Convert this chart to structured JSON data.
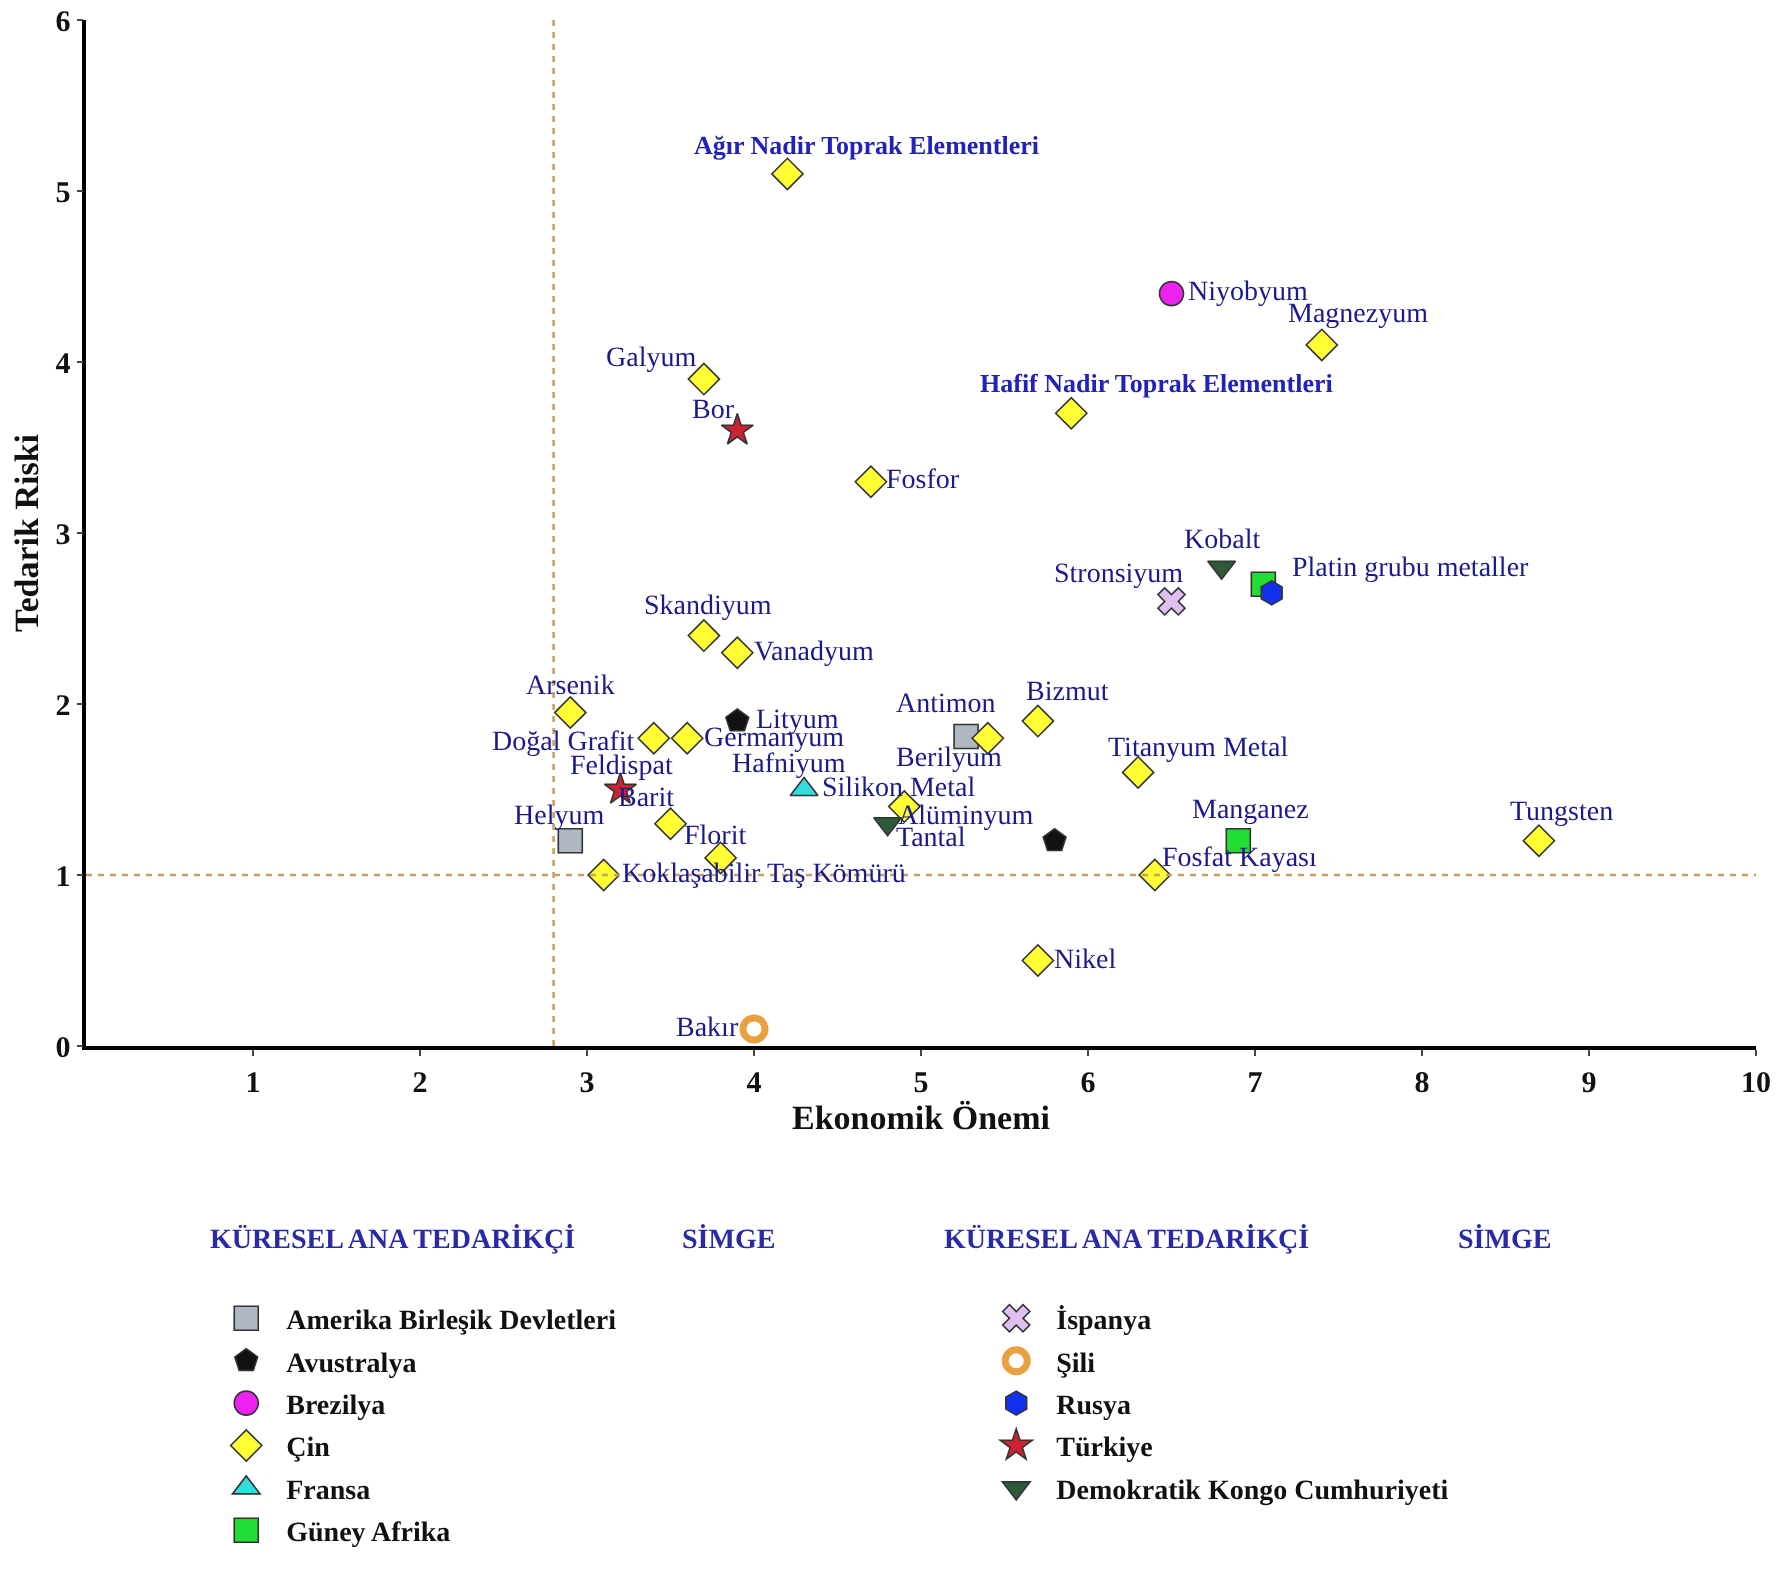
{
  "chart_data": {
    "type": "scatter",
    "xlabel": "Ekonomik Önemi",
    "ylabel": "Tedarik Riski",
    "xlim": [
      0,
      10
    ],
    "xticks": [
      1,
      2,
      3,
      4,
      5,
      6,
      7,
      8,
      9,
      10
    ],
    "ylim": [
      0,
      6
    ],
    "yticks": [
      0,
      1,
      2,
      3,
      4,
      5,
      6
    ],
    "grid": false,
    "legend": "bottom",
    "ref_lines": [
      {
        "axis": "x",
        "value": 2.8,
        "color": "#c8a060",
        "line_style": "dotted"
      },
      {
        "axis": "y",
        "value": 1,
        "color": "#c8a060",
        "line_style": "dotted"
      }
    ],
    "series": [
      {
        "name": "Amerika Birleşik Devletleri",
        "color": "#b0b8c4",
        "marker": "square",
        "x": [
          5.27,
          2.9
        ],
        "values": [
          1.81,
          1.2
        ]
      },
      {
        "name": "Avustralya",
        "color": "#111111",
        "x": [
          3.9,
          5.8
        ],
        "values": [
          1.9,
          1.2
        ]
      },
      {
        "name": "Brezilya",
        "color": "#ee22ee",
        "marker": "circle",
        "x": [
          6.5
        ],
        "values": [
          4.4
        ]
      },
      {
        "name": "Çin",
        "color": "#ffff33",
        "marker": "diamond",
        "x": [
          4.2,
          7.4,
          5.9,
          3.7,
          4.7,
          3.7,
          3.9,
          2.9,
          3.4,
          3.6,
          5.4,
          5.7,
          6.3,
          4.9,
          3.5,
          3.8,
          3.1,
          6.4,
          8.7,
          5.7
        ],
        "values": [
          5.1,
          4.1,
          3.7,
          3.9,
          3.3,
          2.4,
          2.3,
          1.95,
          1.8,
          1.8,
          1.8,
          1.9,
          1.6,
          1.4,
          1.3,
          1.1,
          1.0,
          1.0,
          1.2,
          0.5
        ]
      },
      {
        "name": "Fransa",
        "color": "#33dddd",
        "marker": "triangle",
        "x": [
          4.3
        ],
        "values": [
          1.5
        ]
      },
      {
        "name": "Güney Afrika",
        "color": "#22dd33",
        "marker": "square",
        "x": [
          7.05,
          6.9
        ],
        "values": [
          2.7,
          1.2
        ]
      },
      {
        "name": "İspanya",
        "color": "#e0c0f0",
        "marker": "cross",
        "x": [
          6.5
        ],
        "values": [
          2.6
        ]
      },
      {
        "name": "Şili",
        "color": "#e8a040",
        "x": [
          4.0
        ],
        "values": [
          0.1
        ]
      },
      {
        "name": "Rusya",
        "color": "#1030ee",
        "x": [
          7.1
        ],
        "values": [
          2.65
        ]
      },
      {
        "name": "Türkiye",
        "color": "#cc2233",
        "marker": "star",
        "x": [
          3.9,
          3.2
        ],
        "values": [
          3.6,
          1.5
        ]
      },
      {
        "name": "Demokratik Kongo Cumhuriyeti",
        "color": "#2f5a3a",
        "marker": "triangle-down",
        "x": [
          6.8,
          4.8
        ],
        "values": [
          2.8,
          1.3
        ]
      }
    ],
    "annotations": [
      "KÜRESEL ANA TEDARİKÇİ",
      "SİMGE",
      "KÜRESEL ANA TEDARİKÇİ",
      "SİMGE",
      {
        "text": "Ağır Nadir Toprak Elementleri",
        "x": 4.2,
        "y": 5.1
      },
      {
        "text": "Hafif Nadir Toprak Elementleri",
        "x": 5.9,
        "y": 3.7
      },
      {
        "text": "Magnezyum",
        "x": 7.4,
        "y": 4.1
      },
      {
        "text": "Niyobyum",
        "x": 6.5,
        "y": 4.4
      },
      {
        "text": "Galyum",
        "x": 3.7,
        "y": 3.9
      },
      {
        "text": "Bor",
        "x": 3.9,
        "y": 3.6
      },
      {
        "text": "Fosfor",
        "x": 4.7,
        "y": 3.3
      },
      {
        "text": "Kobalt",
        "x": 6.8,
        "y": 2.8
      },
      {
        "text": "Platin grubu metaller",
        "x": 7.1,
        "y": 2.65
      },
      {
        "text": "Stronsiyum",
        "x": 6.5,
        "y": 2.6
      },
      {
        "text": "Skandiyum",
        "x": 3.7,
        "y": 2.4
      },
      {
        "text": "Vanadyum",
        "x": 3.9,
        "y": 2.3
      },
      {
        "text": "Arsenik",
        "x": 2.9,
        "y": 1.95
      },
      {
        "text": "Lityum",
        "x": 3.9,
        "y": 1.9
      },
      {
        "text": "Doğal Grafit",
        "x": 3.4,
        "y": 1.8
      },
      {
        "text": "Germanyum",
        "x": 3.6,
        "y": 1.8
      },
      {
        "text": "Feldispat",
        "x": 3.2,
        "y": 1.5
      },
      {
        "text": "Hafniyum",
        "x": 4.3,
        "y": 1.5
      },
      {
        "text": "Silikon Metal",
        "x": 4.3,
        "y": 1.5
      },
      {
        "text": "Antimon",
        "x": 5.27,
        "y": 1.81
      },
      {
        "text": "Bizmut",
        "x": 5.7,
        "y": 1.9
      },
      {
        "text": "Berilyum",
        "x": 4.9,
        "y": 1.4
      },
      {
        "text": "Titanyum Metal",
        "x": 6.3,
        "y": 1.6
      },
      {
        "text": "Barit",
        "x": 3.5,
        "y": 1.3
      },
      {
        "text": "Helyum",
        "x": 2.9,
        "y": 1.2
      },
      {
        "text": "Florit",
        "x": 3.8,
        "y": 1.1
      },
      {
        "text": "Tantal",
        "x": 4.8,
        "y": 1.3
      },
      {
        "text": "Alüminyum",
        "x": 5.8,
        "y": 1.2
      },
      {
        "text": "Manganez",
        "x": 6.9,
        "y": 1.2
      },
      {
        "text": "Tungsten",
        "x": 8.7,
        "y": 1.2
      },
      {
        "text": "Koklaşabilir Taş Kömürü",
        "x": 3.1,
        "y": 1.0
      },
      {
        "text": "Fosfat Kayası",
        "x": 6.4,
        "y": 1.0
      },
      {
        "text": "Nikel",
        "x": 5.7,
        "y": 0.5
      },
      {
        "text": "Bakır",
        "x": 4.0,
        "y": 0.1
      }
    ]
  }
}
